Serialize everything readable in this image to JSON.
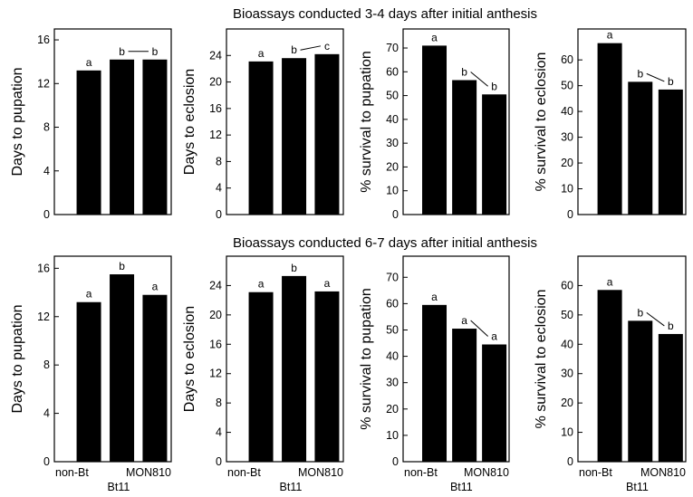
{
  "titles": {
    "row1": "Bioassays conducted 3-4 days after initial anthesis",
    "row2": "Bioassays conducted 6-7 days after initial anthesis"
  },
  "category_labels": {
    "left": "non-Bt",
    "middle": "Bt11",
    "right": "MON810"
  },
  "colors": {
    "bar": "#000000",
    "axis": "#000000",
    "background": "#ffffff"
  },
  "chart_data": [
    {
      "type": "bar",
      "row": 1,
      "col": 1,
      "ylabel": "Days to pupation",
      "ylim": [
        0,
        17
      ],
      "yticks": [
        0,
        4,
        8,
        12,
        16
      ],
      "categories": [
        "non-Bt",
        "Bt11",
        "MON810"
      ],
      "values": [
        13.2,
        14.2,
        14.2
      ],
      "letters": [
        "a",
        "b",
        "b"
      ],
      "connectors": [
        [
          1,
          2
        ]
      ],
      "category_labels_shown": false
    },
    {
      "type": "bar",
      "row": 1,
      "col": 2,
      "ylabel": "Days to eclosion",
      "ylim": [
        0,
        28
      ],
      "yticks": [
        0,
        4,
        8,
        12,
        16,
        20,
        24
      ],
      "categories": [
        "non-Bt",
        "Bt11",
        "MON810"
      ],
      "values": [
        23.1,
        23.6,
        24.2
      ],
      "letters": [
        "a",
        "b",
        "c"
      ],
      "connectors": [
        [
          1,
          2
        ]
      ],
      "category_labels_shown": false
    },
    {
      "type": "bar",
      "row": 1,
      "col": 3,
      "ylabel": "% survival to pupation",
      "ylim": [
        0,
        78
      ],
      "yticks": [
        0,
        10,
        20,
        30,
        40,
        50,
        60,
        70
      ],
      "categories": [
        "non-Bt",
        "Bt11",
        "MON810"
      ],
      "values": [
        71,
        56.5,
        50.5
      ],
      "letters": [
        "a",
        "b",
        "b"
      ],
      "connectors": [
        [
          1,
          2
        ]
      ],
      "category_labels_shown": false
    },
    {
      "type": "bar",
      "row": 1,
      "col": 4,
      "ylabel": "% survival to eclosion",
      "ylim": [
        0,
        72
      ],
      "yticks": [
        0,
        10,
        20,
        30,
        40,
        50,
        60
      ],
      "categories": [
        "non-Bt",
        "Bt11",
        "MON810"
      ],
      "values": [
        66.5,
        51.5,
        48.5
      ],
      "letters": [
        "a",
        "b",
        "b"
      ],
      "connectors": [
        [
          1,
          2
        ]
      ],
      "category_labels_shown": false
    },
    {
      "type": "bar",
      "row": 2,
      "col": 1,
      "ylabel": "Days to pupation",
      "ylim": [
        0,
        17
      ],
      "yticks": [
        0,
        4,
        8,
        12,
        16
      ],
      "categories": [
        "non-Bt",
        "Bt11",
        "MON810"
      ],
      "values": [
        13.2,
        15.5,
        13.8
      ],
      "letters": [
        "a",
        "b",
        "a"
      ],
      "connectors": [],
      "category_labels_shown": true
    },
    {
      "type": "bar",
      "row": 2,
      "col": 2,
      "ylabel": "Days to eclosion",
      "ylim": [
        0,
        28
      ],
      "yticks": [
        0,
        4,
        8,
        12,
        16,
        20,
        24
      ],
      "categories": [
        "non-Bt",
        "Bt11",
        "MON810"
      ],
      "values": [
        23.1,
        25.3,
        23.2
      ],
      "letters": [
        "a",
        "b",
        "a"
      ],
      "connectors": [],
      "category_labels_shown": true
    },
    {
      "type": "bar",
      "row": 2,
      "col": 3,
      "ylabel": "% survival to pupation",
      "ylim": [
        0,
        78
      ],
      "yticks": [
        0,
        10,
        20,
        30,
        40,
        50,
        60,
        70
      ],
      "categories": [
        "non-Bt",
        "Bt11",
        "MON810"
      ],
      "values": [
        59.5,
        50.5,
        44.5
      ],
      "letters": [
        "a",
        "a",
        "a"
      ],
      "connectors": [
        [
          1,
          2
        ]
      ],
      "category_labels_shown": true
    },
    {
      "type": "bar",
      "row": 2,
      "col": 4,
      "ylabel": "% survival to eclosion",
      "ylim": [
        0,
        70
      ],
      "yticks": [
        0,
        10,
        20,
        30,
        40,
        50,
        60
      ],
      "categories": [
        "non-Bt",
        "Bt11",
        "MON810"
      ],
      "values": [
        58.5,
        48,
        43.5
      ],
      "letters": [
        "a",
        "b",
        "b"
      ],
      "connectors": [
        [
          1,
          2
        ]
      ],
      "category_labels_shown": true
    }
  ]
}
